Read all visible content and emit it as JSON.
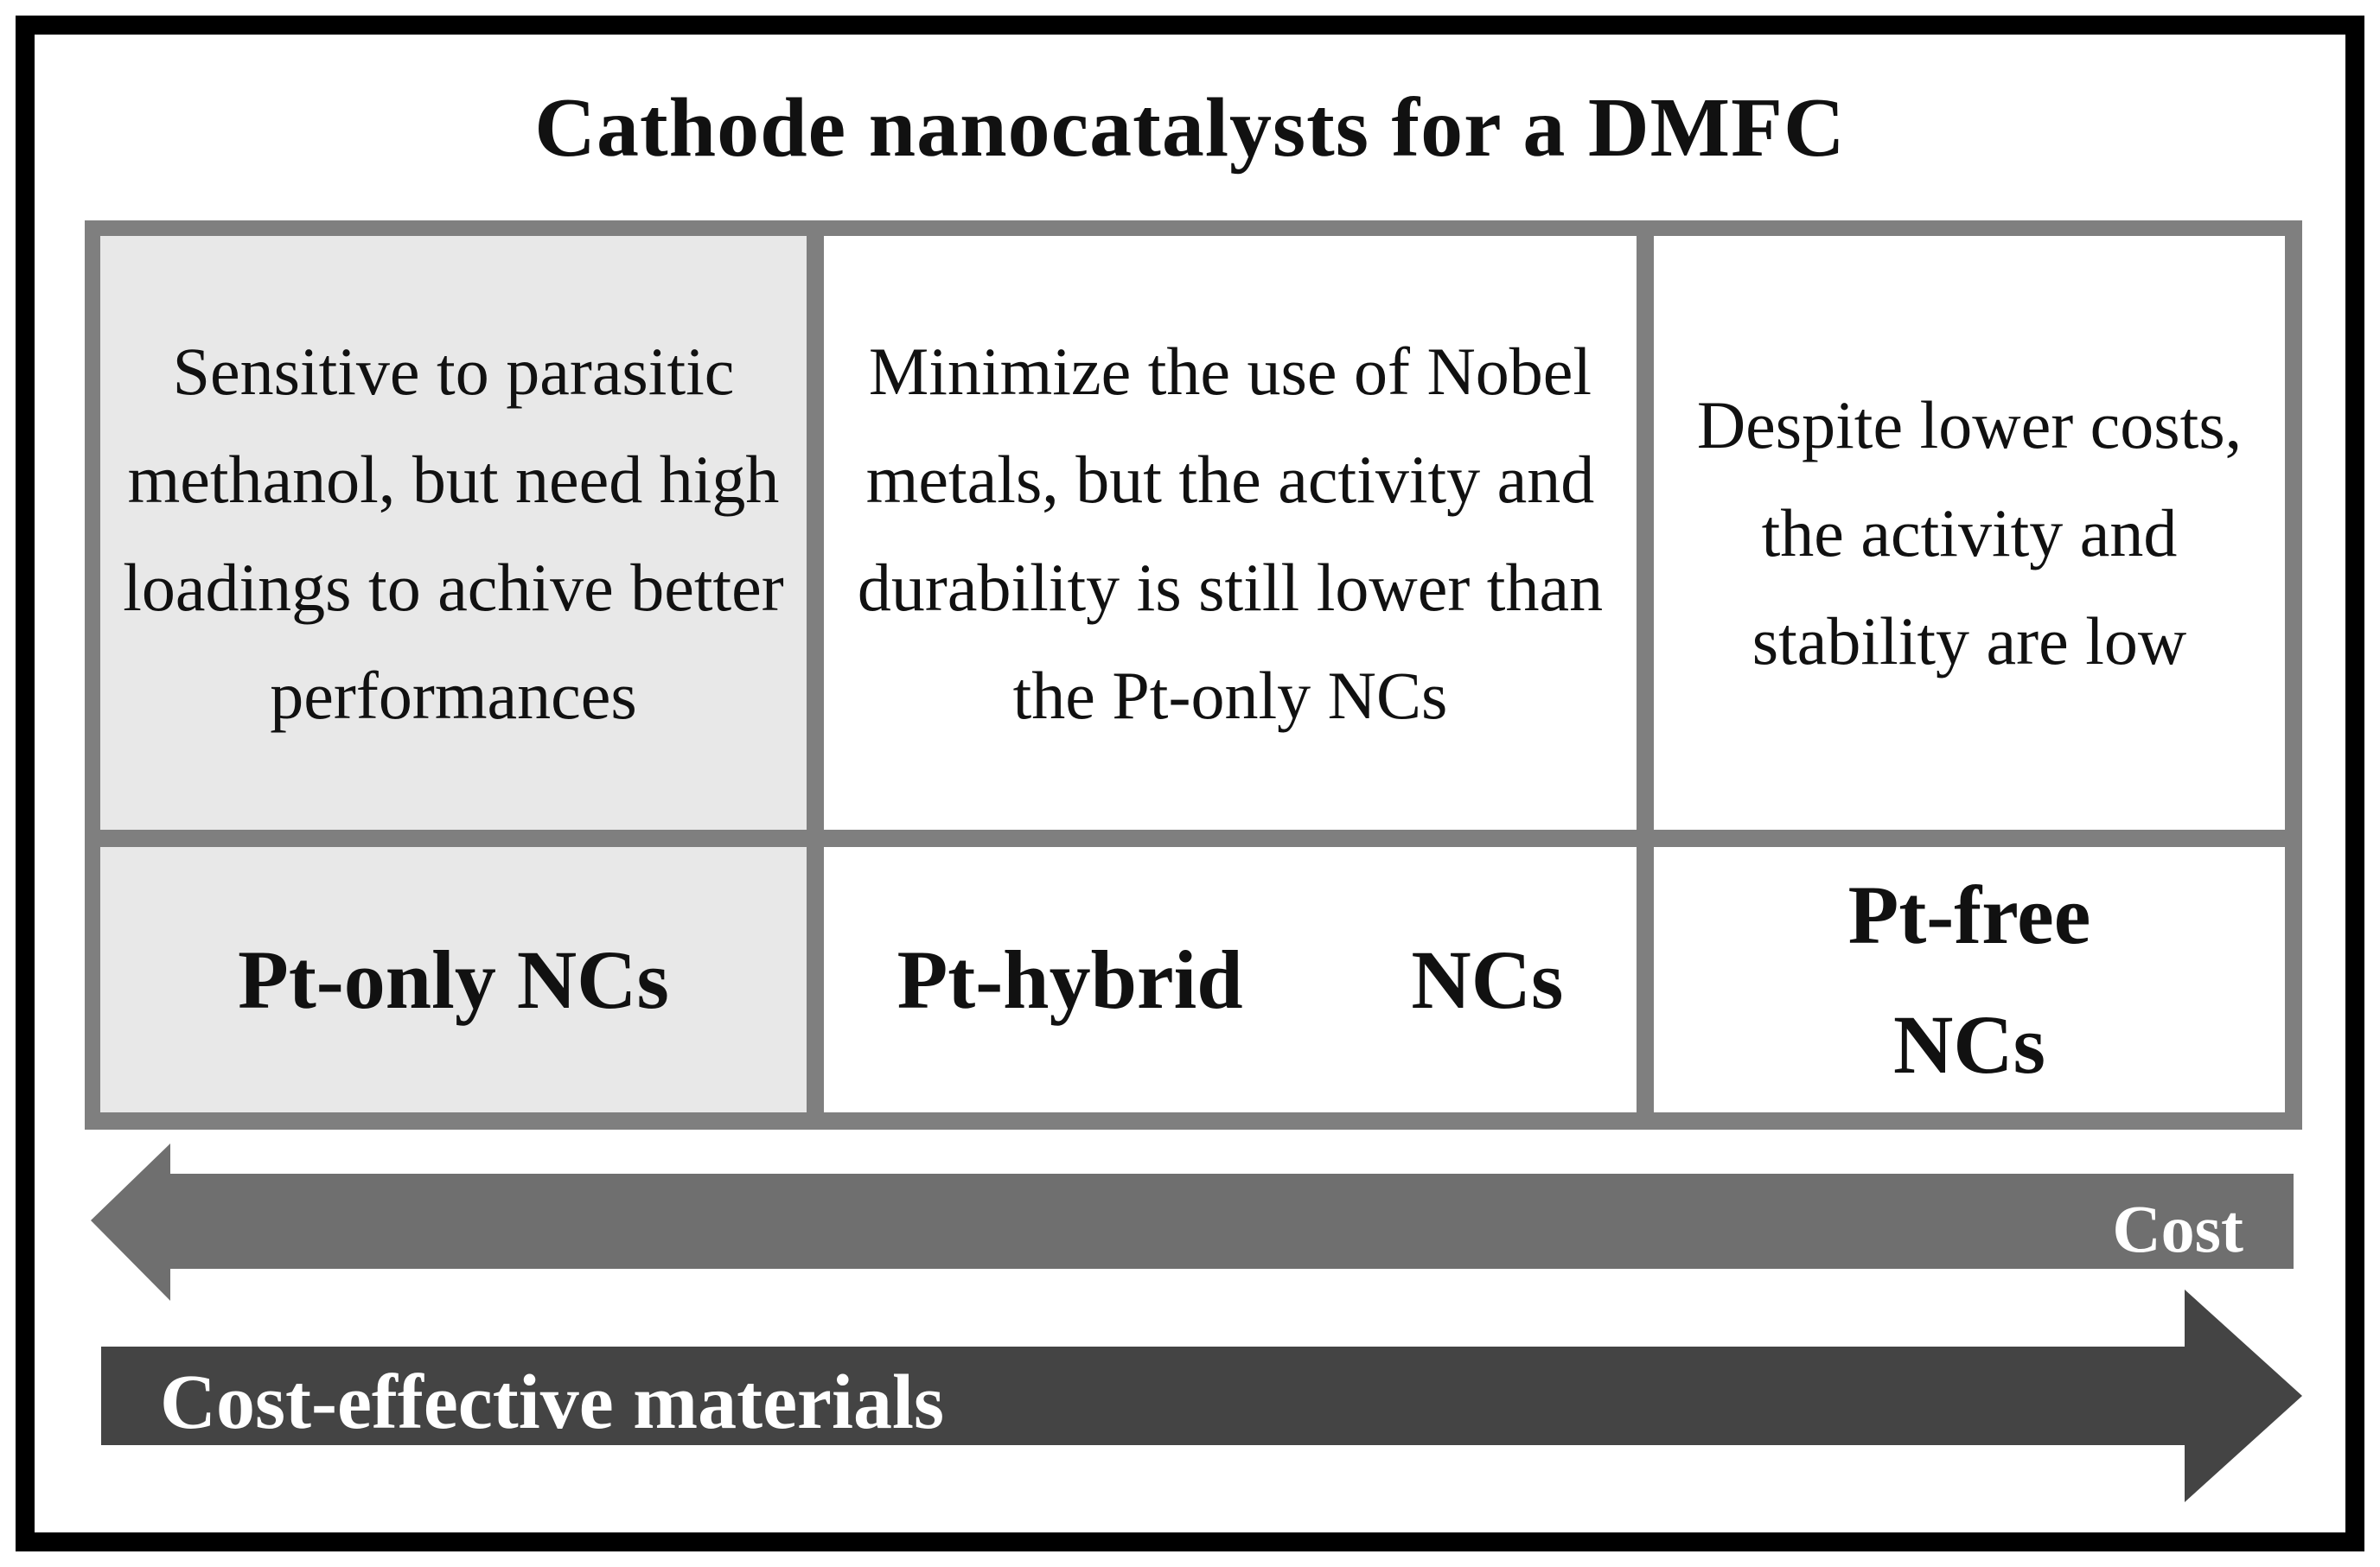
{
  "title": "Cathode nanocatalysts for a DMFC",
  "columns": [
    {
      "description": "Sensitive to parasitic methanol, but need high loadings to achive better performances",
      "label": "Pt-only NCs",
      "fill": "#e8e8e8"
    },
    {
      "description": "Minimize the use of Nobel metals, but the activity and durability is still lower than the Pt-only NCs",
      "label_parts": [
        "Pt-hybrid",
        "NCs"
      ],
      "fill": "#ffffff"
    },
    {
      "description": "Despite lower costs, the activity and stability are low",
      "label": "Pt-free NCs",
      "fill": "#ffffff"
    }
  ],
  "arrows": {
    "cost": {
      "label": "Cost",
      "direction": "left",
      "color": "#6f6f6f"
    },
    "cost_effective": {
      "label": "Cost-effective materials",
      "direction": "right",
      "color": "#444444"
    }
  },
  "colors": {
    "grid_border": "#7f7f7f",
    "frame": "#000000"
  }
}
